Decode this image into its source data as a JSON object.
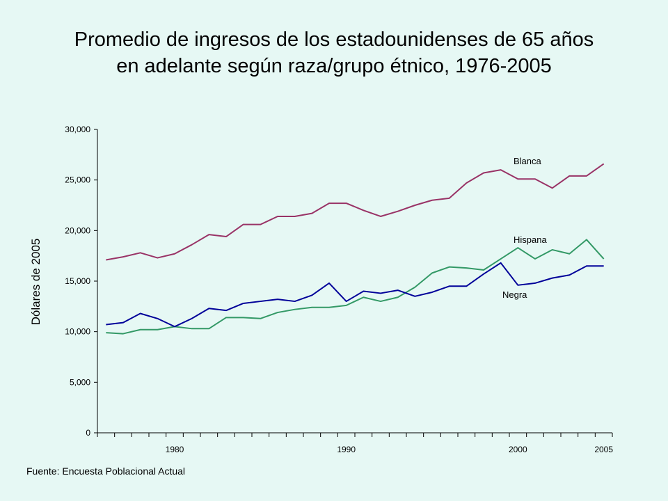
{
  "header": {
    "title_line1": "Promedio de ingresos de los estadounidenses de 65 años",
    "title_line2": "en adelante según raza/grupo étnico, 1976-2005"
  },
  "footer": {
    "source": "Fuente: Encuesta Poblacional Actual"
  },
  "colors": {
    "Blanca": "#993366",
    "Hispana": "#339966",
    "Negra": "#000099",
    "axis": "#000000",
    "background": "#E6F8F4"
  },
  "chart_data": {
    "type": "line",
    "ylabel": "Dólares de 2005",
    "xlabel": "",
    "ylim": [
      0,
      30000
    ],
    "yticks": [
      0,
      5000,
      10000,
      15000,
      20000,
      25000,
      30000
    ],
    "ytick_labels": [
      "0",
      "5,000",
      "10,000",
      "15,000",
      "20,000",
      "25,000",
      "30,000"
    ],
    "xlim": [
      1975.5,
      2005.5
    ],
    "xtick_labels": [
      {
        "year": 1980,
        "label": "1980"
      },
      {
        "year": 1990,
        "label": "1990"
      },
      {
        "year": 2000,
        "label": "2000"
      },
      {
        "year": 2005,
        "label": "2005"
      }
    ],
    "x": [
      1976,
      1977,
      1978,
      1979,
      1980,
      1981,
      1982,
      1983,
      1984,
      1985,
      1986,
      1987,
      1988,
      1989,
      1990,
      1991,
      1992,
      1993,
      1994,
      1995,
      1996,
      1997,
      1998,
      1999,
      2000,
      2001,
      2002,
      2003,
      2004,
      2005
    ],
    "series": [
      {
        "name": "Blanca",
        "values": [
          17100,
          17400,
          17800,
          17300,
          17700,
          18600,
          19600,
          19400,
          20600,
          20600,
          21400,
          21400,
          21700,
          22700,
          22700,
          22000,
          21400,
          21900,
          22500,
          23000,
          23200,
          24700,
          25700,
          26000,
          25100,
          25100,
          24200,
          25400,
          25400,
          26600
        ]
      },
      {
        "name": "Hispana",
        "values": [
          9900,
          9800,
          10200,
          10200,
          10500,
          10300,
          10300,
          11400,
          11400,
          11300,
          11900,
          12200,
          12400,
          12400,
          12600,
          13400,
          13000,
          13400,
          14400,
          15800,
          16400,
          16300,
          16100,
          17200,
          18300,
          17200,
          18100,
          17700,
          19100,
          17200
        ]
      },
      {
        "name": "Negra",
        "values": [
          10700,
          10900,
          11800,
          11300,
          10500,
          11300,
          12300,
          12100,
          12800,
          13000,
          13200,
          13000,
          13600,
          14800,
          13000,
          14000,
          13800,
          14100,
          13500,
          13900,
          14500,
          14500,
          15700,
          16800,
          14600,
          14800,
          15300,
          15600,
          16500,
          16500
        ]
      }
    ]
  }
}
